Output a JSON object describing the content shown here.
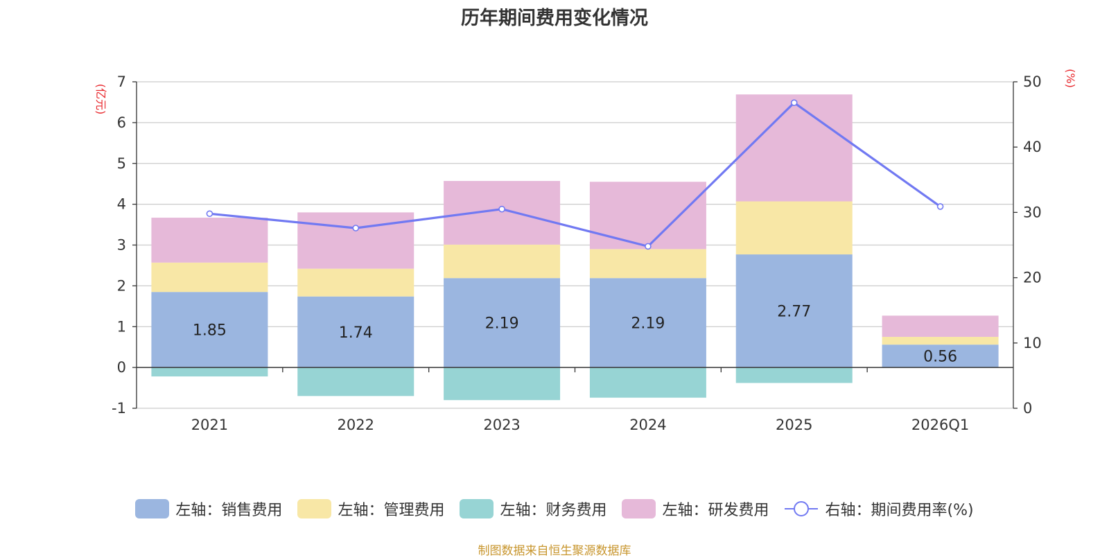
{
  "chart_data": {
    "type": "bar",
    "stacked": true,
    "title": "历年期间费用变化情况",
    "categories": [
      "2021",
      "2022",
      "2023",
      "2024",
      "2025",
      "2026Q1"
    ],
    "series": [
      {
        "name": "左轴：销售费用",
        "axis": "left",
        "color": "#9bb6e0",
        "values": [
          1.85,
          1.74,
          2.19,
          2.19,
          2.77,
          0.56
        ],
        "show_labels": true
      },
      {
        "name": "左轴：管理费用",
        "axis": "left",
        "color": "#f8e7a6",
        "values": [
          0.72,
          0.68,
          0.82,
          0.71,
          1.3,
          0.19
        ],
        "show_labels": false
      },
      {
        "name": "左轴：财务费用",
        "axis": "left",
        "color": "#97d4d4",
        "values": [
          -0.22,
          -0.7,
          -0.8,
          -0.74,
          -0.38,
          0.0
        ],
        "show_labels": false
      },
      {
        "name": "左轴：研发费用",
        "axis": "left",
        "color": "#e6b9d9",
        "values": [
          1.1,
          1.38,
          1.56,
          1.65,
          2.62,
          0.52
        ],
        "show_labels": false
      }
    ],
    "line_series": {
      "name": "右轴：期间费用率(%)",
      "axis": "right",
      "color": "#7179f2",
      "values": [
        29.8,
        27.6,
        30.5,
        24.8,
        46.8,
        30.9
      ]
    },
    "left_axis": {
      "unit": "(亿元)",
      "min": -1,
      "max": 7,
      "ticks": [
        -1,
        0,
        1,
        2,
        3,
        4,
        5,
        6,
        7
      ]
    },
    "right_axis": {
      "unit": "(%)",
      "min": 0,
      "max": 50,
      "ticks": [
        0,
        10,
        20,
        30,
        40,
        50
      ]
    },
    "grid": true,
    "legend_position": "bottom"
  },
  "source": "制图数据来自恒生聚源数据库"
}
